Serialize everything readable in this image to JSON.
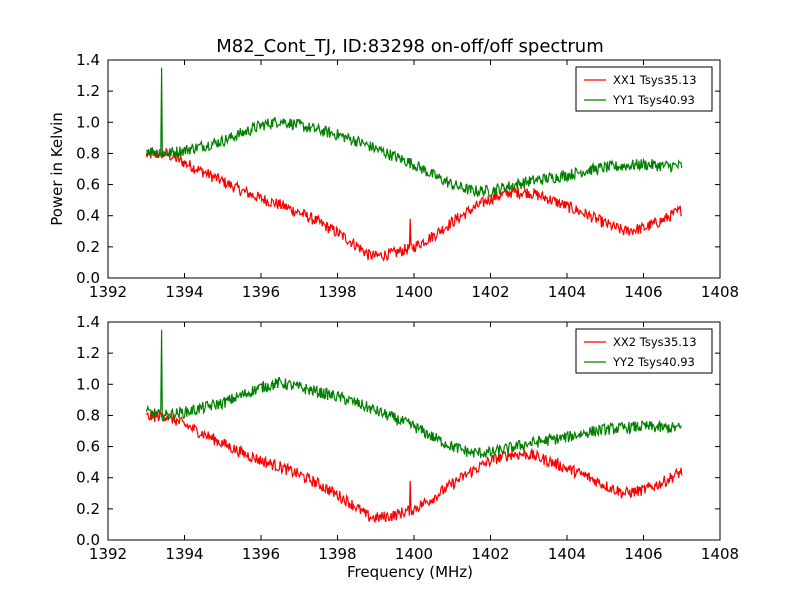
{
  "chart_data": [
    {
      "type": "line",
      "title": "M82_Cont_TJ, ID:83298 on-off/off spectrum",
      "xlabel": "",
      "ylabel": "Power in Kelvin",
      "xlim": [
        1392,
        1408
      ],
      "ylim": [
        0.0,
        1.4
      ],
      "xticks": [
        "1392",
        "1394",
        "1396",
        "1398",
        "1400",
        "1402",
        "1404",
        "1406",
        "1408"
      ],
      "yticks": [
        "0.0",
        "0.2",
        "0.4",
        "0.6",
        "0.8",
        "1.0",
        "1.2",
        "1.4"
      ],
      "grid": false,
      "legend_position": "top-right",
      "series": [
        {
          "name": "XX1 Tsys35.13",
          "color": "#ff0000",
          "x": [
            1393.0,
            1393.5,
            1394.0,
            1394.5,
            1395.0,
            1395.5,
            1396.0,
            1396.5,
            1397.0,
            1397.5,
            1398.0,
            1398.5,
            1398.8,
            1399.0,
            1399.5,
            1400.0,
            1400.5,
            1401.0,
            1401.5,
            1402.0,
            1402.5,
            1403.0,
            1403.5,
            1404.0,
            1404.5,
            1405.0,
            1405.5,
            1406.0,
            1406.5,
            1407.0
          ],
          "y": [
            0.79,
            0.8,
            0.74,
            0.68,
            0.62,
            0.56,
            0.51,
            0.47,
            0.42,
            0.36,
            0.29,
            0.21,
            0.15,
            0.14,
            0.16,
            0.2,
            0.27,
            0.36,
            0.44,
            0.51,
            0.55,
            0.55,
            0.51,
            0.46,
            0.41,
            0.35,
            0.3,
            0.32,
            0.37,
            0.44
          ]
        },
        {
          "name": "YY1 Tsys40.93",
          "color": "#008000",
          "x": [
            1393.0,
            1393.5,
            1394.0,
            1394.5,
            1395.0,
            1395.5,
            1396.0,
            1396.5,
            1397.0,
            1397.5,
            1398.0,
            1398.5,
            1399.0,
            1399.5,
            1400.0,
            1400.5,
            1401.0,
            1401.5,
            1402.0,
            1402.5,
            1403.0,
            1403.5,
            1404.0,
            1404.5,
            1405.0,
            1405.5,
            1406.0,
            1406.5,
            1407.0
          ],
          "y": [
            0.82,
            0.8,
            0.82,
            0.85,
            0.88,
            0.93,
            0.98,
            1.01,
            0.98,
            0.95,
            0.92,
            0.88,
            0.83,
            0.78,
            0.73,
            0.66,
            0.6,
            0.56,
            0.56,
            0.59,
            0.62,
            0.64,
            0.66,
            0.69,
            0.71,
            0.72,
            0.73,
            0.72,
            0.72
          ]
        }
      ],
      "spike": {
        "x": 1393.4,
        "y": 1.35
      },
      "red_spike": {
        "x": 1399.9,
        "y": 0.38
      }
    },
    {
      "type": "line",
      "title": "",
      "xlabel": "Frequency (MHz)",
      "ylabel": "",
      "xlim": [
        1392,
        1408
      ],
      "ylim": [
        0.0,
        1.4
      ],
      "xticks": [
        "1392",
        "1394",
        "1396",
        "1398",
        "1400",
        "1402",
        "1404",
        "1406",
        "1408"
      ],
      "yticks": [
        "0.0",
        "0.2",
        "0.4",
        "0.6",
        "0.8",
        "1.0",
        "1.2",
        "1.4"
      ],
      "grid": false,
      "legend_position": "top-right",
      "series": [
        {
          "name": "XX2 Tsys35.13",
          "color": "#ff0000",
          "x": [
            1393.0,
            1393.5,
            1394.0,
            1394.5,
            1395.0,
            1395.5,
            1396.0,
            1396.5,
            1397.0,
            1397.5,
            1398.0,
            1398.5,
            1398.8,
            1399.0,
            1399.5,
            1400.0,
            1400.5,
            1401.0,
            1401.5,
            1402.0,
            1402.5,
            1403.0,
            1403.5,
            1404.0,
            1404.5,
            1405.0,
            1405.5,
            1406.0,
            1406.5,
            1407.0
          ],
          "y": [
            0.79,
            0.8,
            0.74,
            0.68,
            0.62,
            0.56,
            0.51,
            0.47,
            0.42,
            0.36,
            0.29,
            0.21,
            0.15,
            0.14,
            0.16,
            0.2,
            0.27,
            0.36,
            0.44,
            0.51,
            0.55,
            0.55,
            0.51,
            0.46,
            0.41,
            0.35,
            0.3,
            0.32,
            0.37,
            0.44
          ]
        },
        {
          "name": "YY2 Tsys40.93",
          "color": "#008000",
          "x": [
            1393.0,
            1393.5,
            1394.0,
            1394.5,
            1395.0,
            1395.5,
            1396.0,
            1396.5,
            1397.0,
            1397.5,
            1398.0,
            1398.5,
            1399.0,
            1399.5,
            1400.0,
            1400.5,
            1401.0,
            1401.5,
            1402.0,
            1402.5,
            1403.0,
            1403.5,
            1404.0,
            1404.5,
            1405.0,
            1405.5,
            1406.0,
            1406.5,
            1407.0
          ],
          "y": [
            0.82,
            0.8,
            0.82,
            0.85,
            0.88,
            0.93,
            0.98,
            1.01,
            0.98,
            0.95,
            0.92,
            0.88,
            0.83,
            0.78,
            0.73,
            0.66,
            0.6,
            0.56,
            0.56,
            0.59,
            0.62,
            0.64,
            0.66,
            0.69,
            0.71,
            0.72,
            0.73,
            0.72,
            0.72
          ]
        }
      ],
      "spike": {
        "x": 1393.4,
        "y": 1.35
      },
      "red_spike": {
        "x": 1399.9,
        "y": 0.38
      }
    }
  ]
}
